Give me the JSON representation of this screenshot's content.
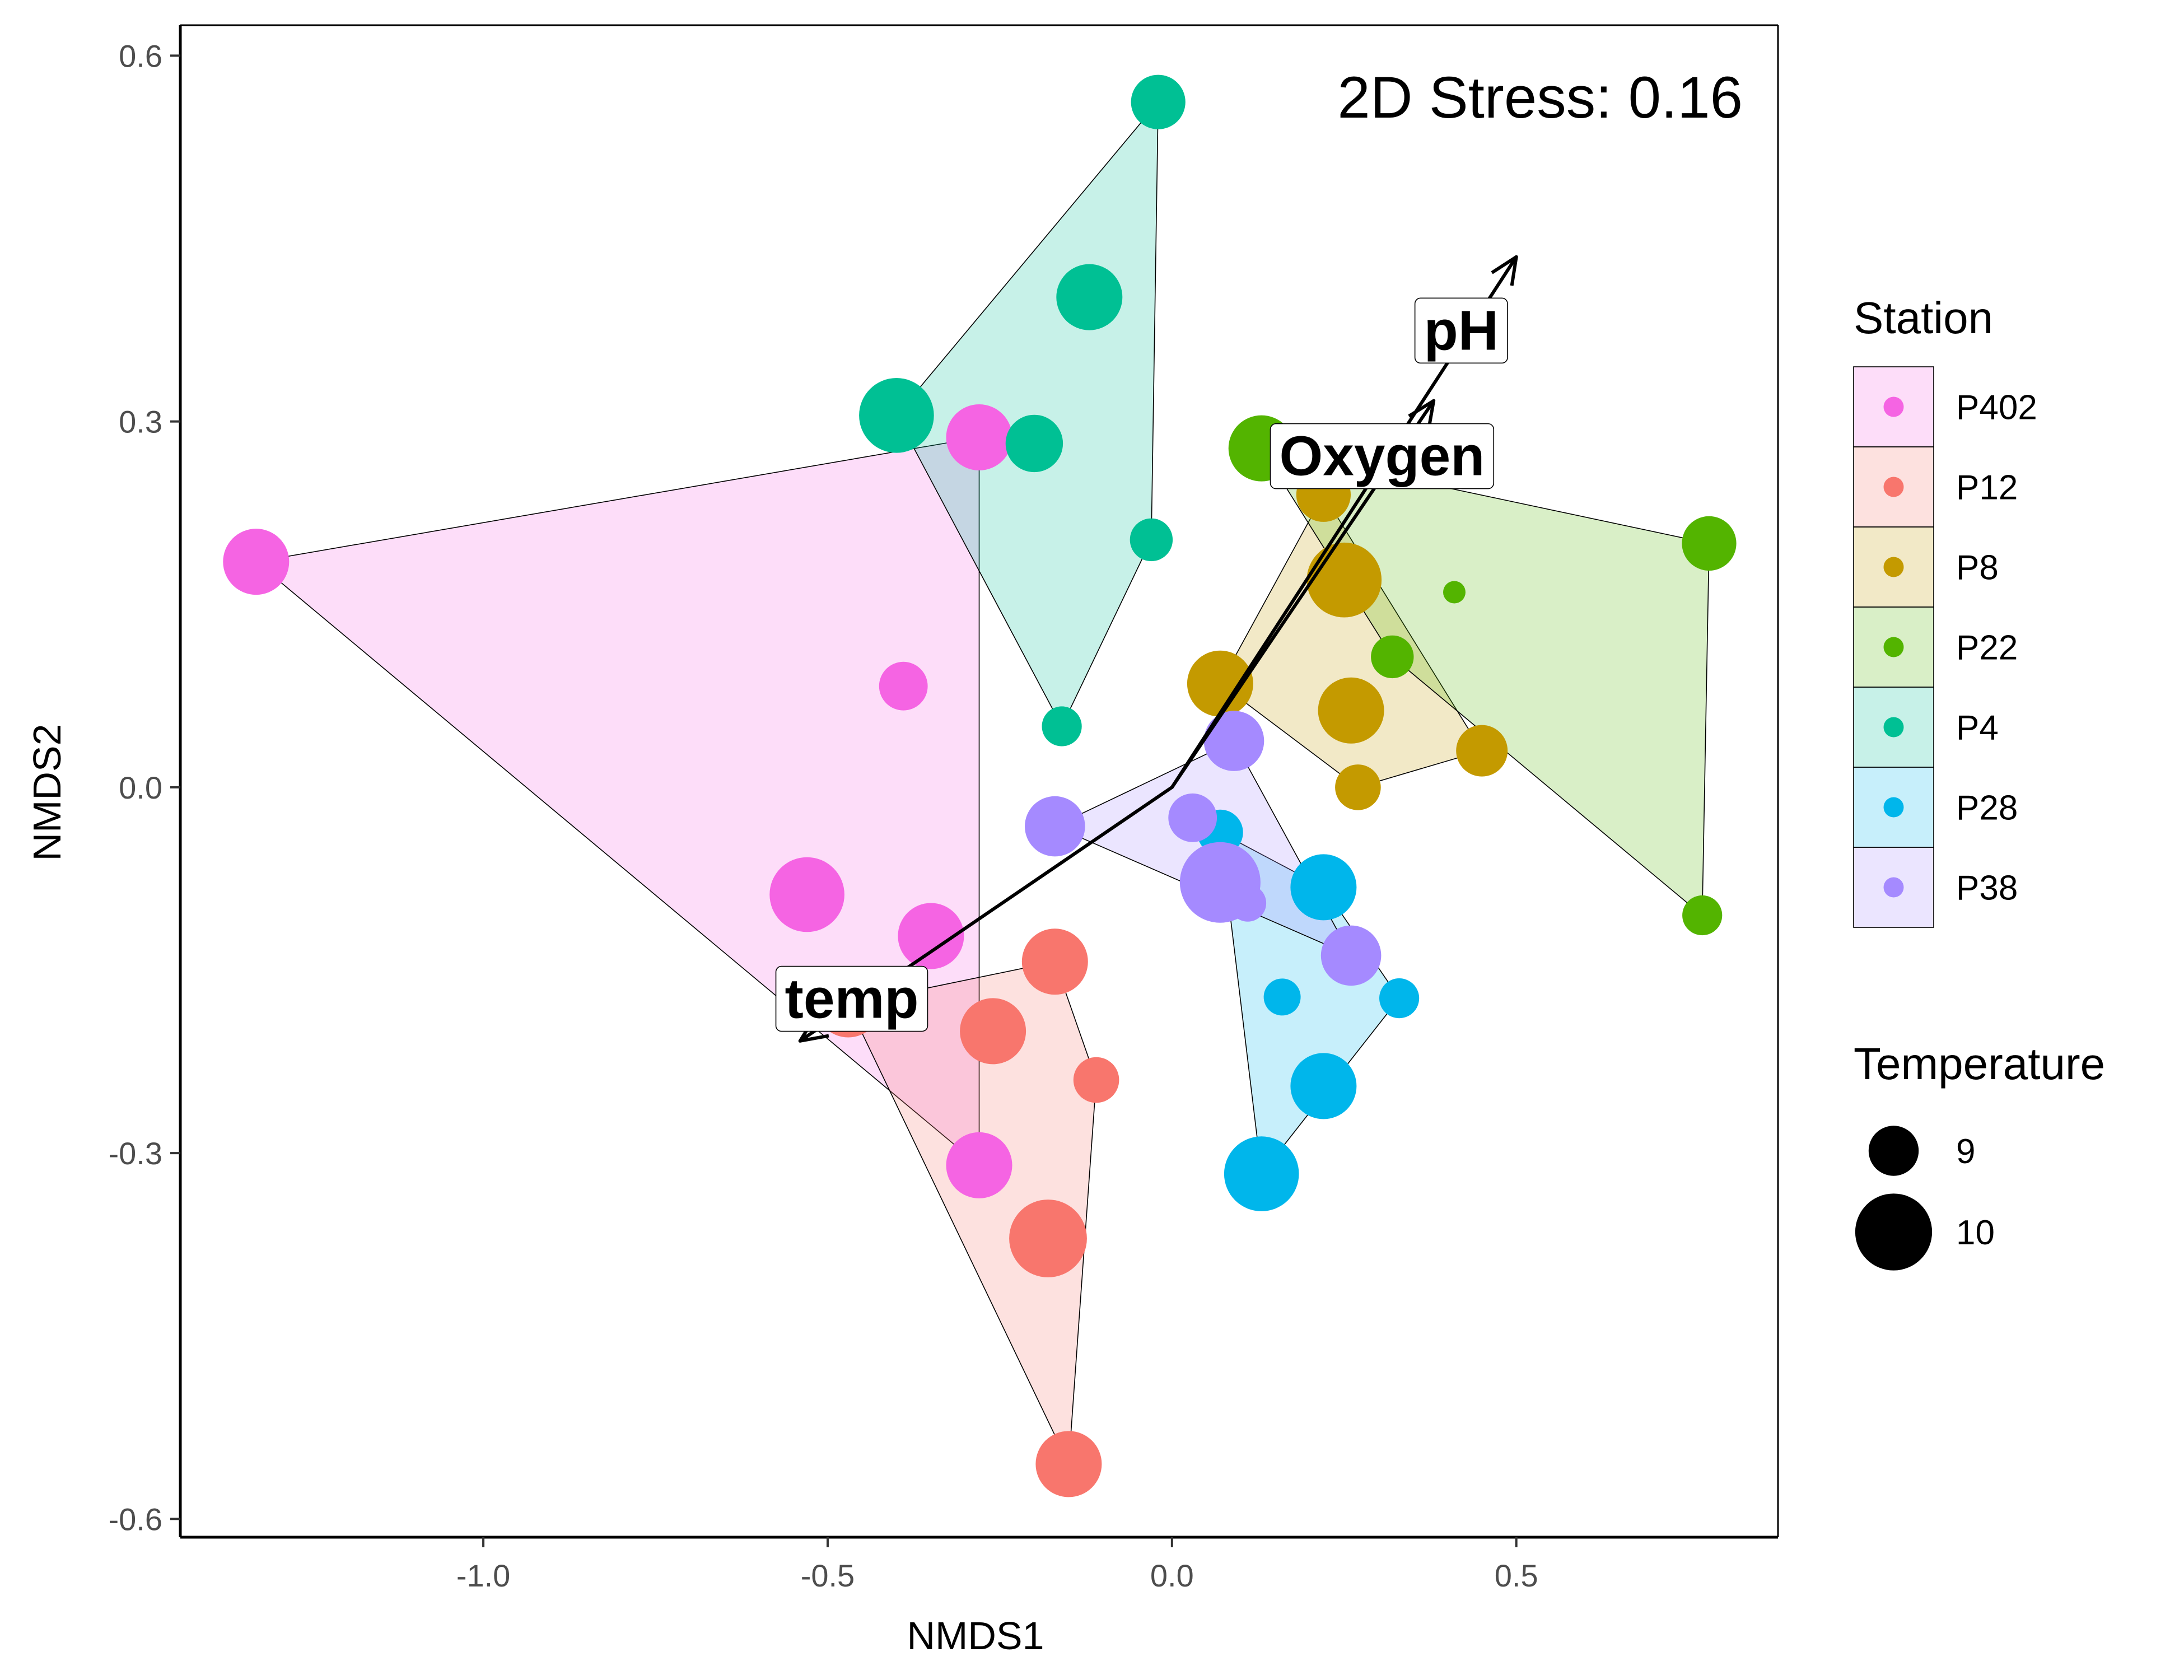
{
  "chart_data": {
    "type": "scatter",
    "title": "",
    "xlabel": "NMDS1",
    "ylabel": "NMDS2",
    "xlim": [
      -1.44,
      0.88
    ],
    "ylim": [
      -0.615,
      0.625
    ],
    "x_ticks": [
      -1.0,
      -0.5,
      0.0,
      0.5
    ],
    "x_tick_labels": [
      "-1.0",
      "-0.5",
      "0.0",
      "0.5"
    ],
    "y_ticks": [
      -0.6,
      -0.3,
      0.0,
      0.3,
      0.6
    ],
    "y_tick_labels": [
      "-0.6",
      "-0.3",
      "0.0",
      "0.3",
      "0.6"
    ],
    "grid": false,
    "annotation": "2D Stress: 0.16",
    "legend": {
      "position": "right",
      "color_title": "Station",
      "size_title": "Temperature",
      "size_entries": [
        {
          "label": "9",
          "value": 9
        },
        {
          "label": "10",
          "value": 10
        }
      ]
    },
    "series": [
      {
        "name": "P402",
        "color": "#F564E3",
        "points": [
          {
            "x": -1.33,
            "y": 0.185,
            "temp": 10
          },
          {
            "x": -0.39,
            "y": 0.083,
            "temp": 9.4
          },
          {
            "x": -0.53,
            "y": -0.088,
            "temp": 10.3
          },
          {
            "x": -0.35,
            "y": -0.122,
            "temp": 10
          },
          {
            "x": -0.28,
            "y": 0.287,
            "temp": 10
          },
          {
            "x": -0.28,
            "y": -0.31,
            "temp": 10
          }
        ]
      },
      {
        "name": "P12",
        "color": "#F8766D",
        "points": [
          {
            "x": -0.17,
            "y": -0.143,
            "temp": 10
          },
          {
            "x": -0.26,
            "y": -0.2,
            "temp": 10
          },
          {
            "x": -0.11,
            "y": -0.24,
            "temp": 9.3
          },
          {
            "x": -0.18,
            "y": -0.37,
            "temp": 10.4
          },
          {
            "x": -0.15,
            "y": -0.555,
            "temp": 10
          },
          {
            "x": -0.47,
            "y": -0.178,
            "temp": 10
          }
        ]
      },
      {
        "name": "P8",
        "color": "#C49A00",
        "points": [
          {
            "x": 0.22,
            "y": 0.24,
            "temp": 9.6
          },
          {
            "x": 0.25,
            "y": 0.17,
            "temp": 10.3
          },
          {
            "x": 0.07,
            "y": 0.085,
            "temp": 10
          },
          {
            "x": 0.26,
            "y": 0.063,
            "temp": 10
          },
          {
            "x": 0.27,
            "y": 0.0,
            "temp": 9.3
          },
          {
            "x": 0.45,
            "y": 0.03,
            "temp": 9.5
          }
        ]
      },
      {
        "name": "P22",
        "color": "#53B400",
        "points": [
          {
            "x": 0.13,
            "y": 0.278,
            "temp": 10
          },
          {
            "x": 0.78,
            "y": 0.2,
            "temp": 9.6
          },
          {
            "x": 0.41,
            "y": 0.16,
            "temp": 8.5
          },
          {
            "x": 0.32,
            "y": 0.107,
            "temp": 9.2
          },
          {
            "x": 0.77,
            "y": -0.105,
            "temp": 9.1
          }
        ]
      },
      {
        "name": "P4",
        "color": "#00C094",
        "points": [
          {
            "x": -0.02,
            "y": 0.562,
            "temp": 9.6
          },
          {
            "x": -0.12,
            "y": 0.402,
            "temp": 10
          },
          {
            "x": -0.4,
            "y": 0.305,
            "temp": 10.3
          },
          {
            "x": -0.2,
            "y": 0.282,
            "temp": 9.7
          },
          {
            "x": -0.03,
            "y": 0.203,
            "temp": 9.2
          },
          {
            "x": -0.16,
            "y": 0.05,
            "temp": 9.1
          }
        ]
      },
      {
        "name": "P28",
        "color": "#00B6EB",
        "points": [
          {
            "x": 0.07,
            "y": -0.037,
            "temp": 9.3
          },
          {
            "x": 0.22,
            "y": -0.082,
            "temp": 10
          },
          {
            "x": 0.16,
            "y": -0.172,
            "temp": 9
          },
          {
            "x": 0.33,
            "y": -0.173,
            "temp": 9.1
          },
          {
            "x": 0.22,
            "y": -0.245,
            "temp": 10
          },
          {
            "x": 0.13,
            "y": -0.317,
            "temp": 10.3
          }
        ]
      },
      {
        "name": "P38",
        "color": "#A58AFF",
        "points": [
          {
            "x": 0.09,
            "y": 0.038,
            "temp": 9.8
          },
          {
            "x": 0.03,
            "y": -0.025,
            "temp": 9.4
          },
          {
            "x": -0.17,
            "y": -0.032,
            "temp": 9.8
          },
          {
            "x": 0.07,
            "y": -0.078,
            "temp": 10.5
          },
          {
            "x": 0.11,
            "y": -0.095,
            "temp": 9
          },
          {
            "x": 0.26,
            "y": -0.138,
            "temp": 9.8
          }
        ]
      }
    ],
    "vectors": [
      {
        "name": "pH",
        "x": 0.5,
        "y": 0.435
      },
      {
        "name": "Oxygen",
        "x": 0.38,
        "y": 0.317
      },
      {
        "name": "temp",
        "x": -0.54,
        "y": -0.208
      }
    ]
  }
}
